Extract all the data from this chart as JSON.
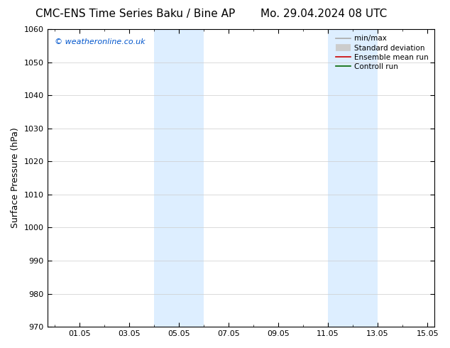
{
  "title_left": "CMC-ENS Time Series Baku / Bine AP",
  "title_right": "Mo. 29.04.2024 08 UTC",
  "ylabel": "Surface Pressure (hPa)",
  "ylim": [
    970,
    1060
  ],
  "yticks": [
    970,
    980,
    990,
    1000,
    1010,
    1020,
    1030,
    1040,
    1050,
    1060
  ],
  "xlim": [
    -0.29,
    15.29
  ],
  "xtick_positions": [
    1.0,
    3.0,
    5.0,
    7.0,
    9.0,
    11.0,
    13.0,
    15.0
  ],
  "xtick_labels": [
    "01.05",
    "03.05",
    "05.05",
    "07.05",
    "09.05",
    "11.05",
    "13.05",
    "15.05"
  ],
  "shaded_bands": [
    {
      "x_start": 4.0,
      "x_end": 5.0
    },
    {
      "x_start": 5.0,
      "x_end": 6.0
    },
    {
      "x_start": 11.0,
      "x_end": 12.0
    },
    {
      "x_start": 12.0,
      "x_end": 13.0
    }
  ],
  "shade_color": "#ddeeff",
  "watermark_text": "© weatheronline.co.uk",
  "watermark_color": "#0055cc",
  "legend_entries": [
    {
      "label": "min/max",
      "color": "#aaaaaa",
      "lw": 1.2
    },
    {
      "label": "Standard deviation",
      "color": "#cccccc",
      "lw": 7
    },
    {
      "label": "Ensemble mean run",
      "color": "#cc0000",
      "lw": 1.2
    },
    {
      "label": "Controll run",
      "color": "#006600",
      "lw": 1.2
    }
  ],
  "bg_color": "#ffffff",
  "grid_color": "#cccccc",
  "title_fontsize": 11,
  "label_fontsize": 9,
  "tick_fontsize": 8,
  "watermark_fontsize": 8,
  "legend_fontsize": 7.5
}
